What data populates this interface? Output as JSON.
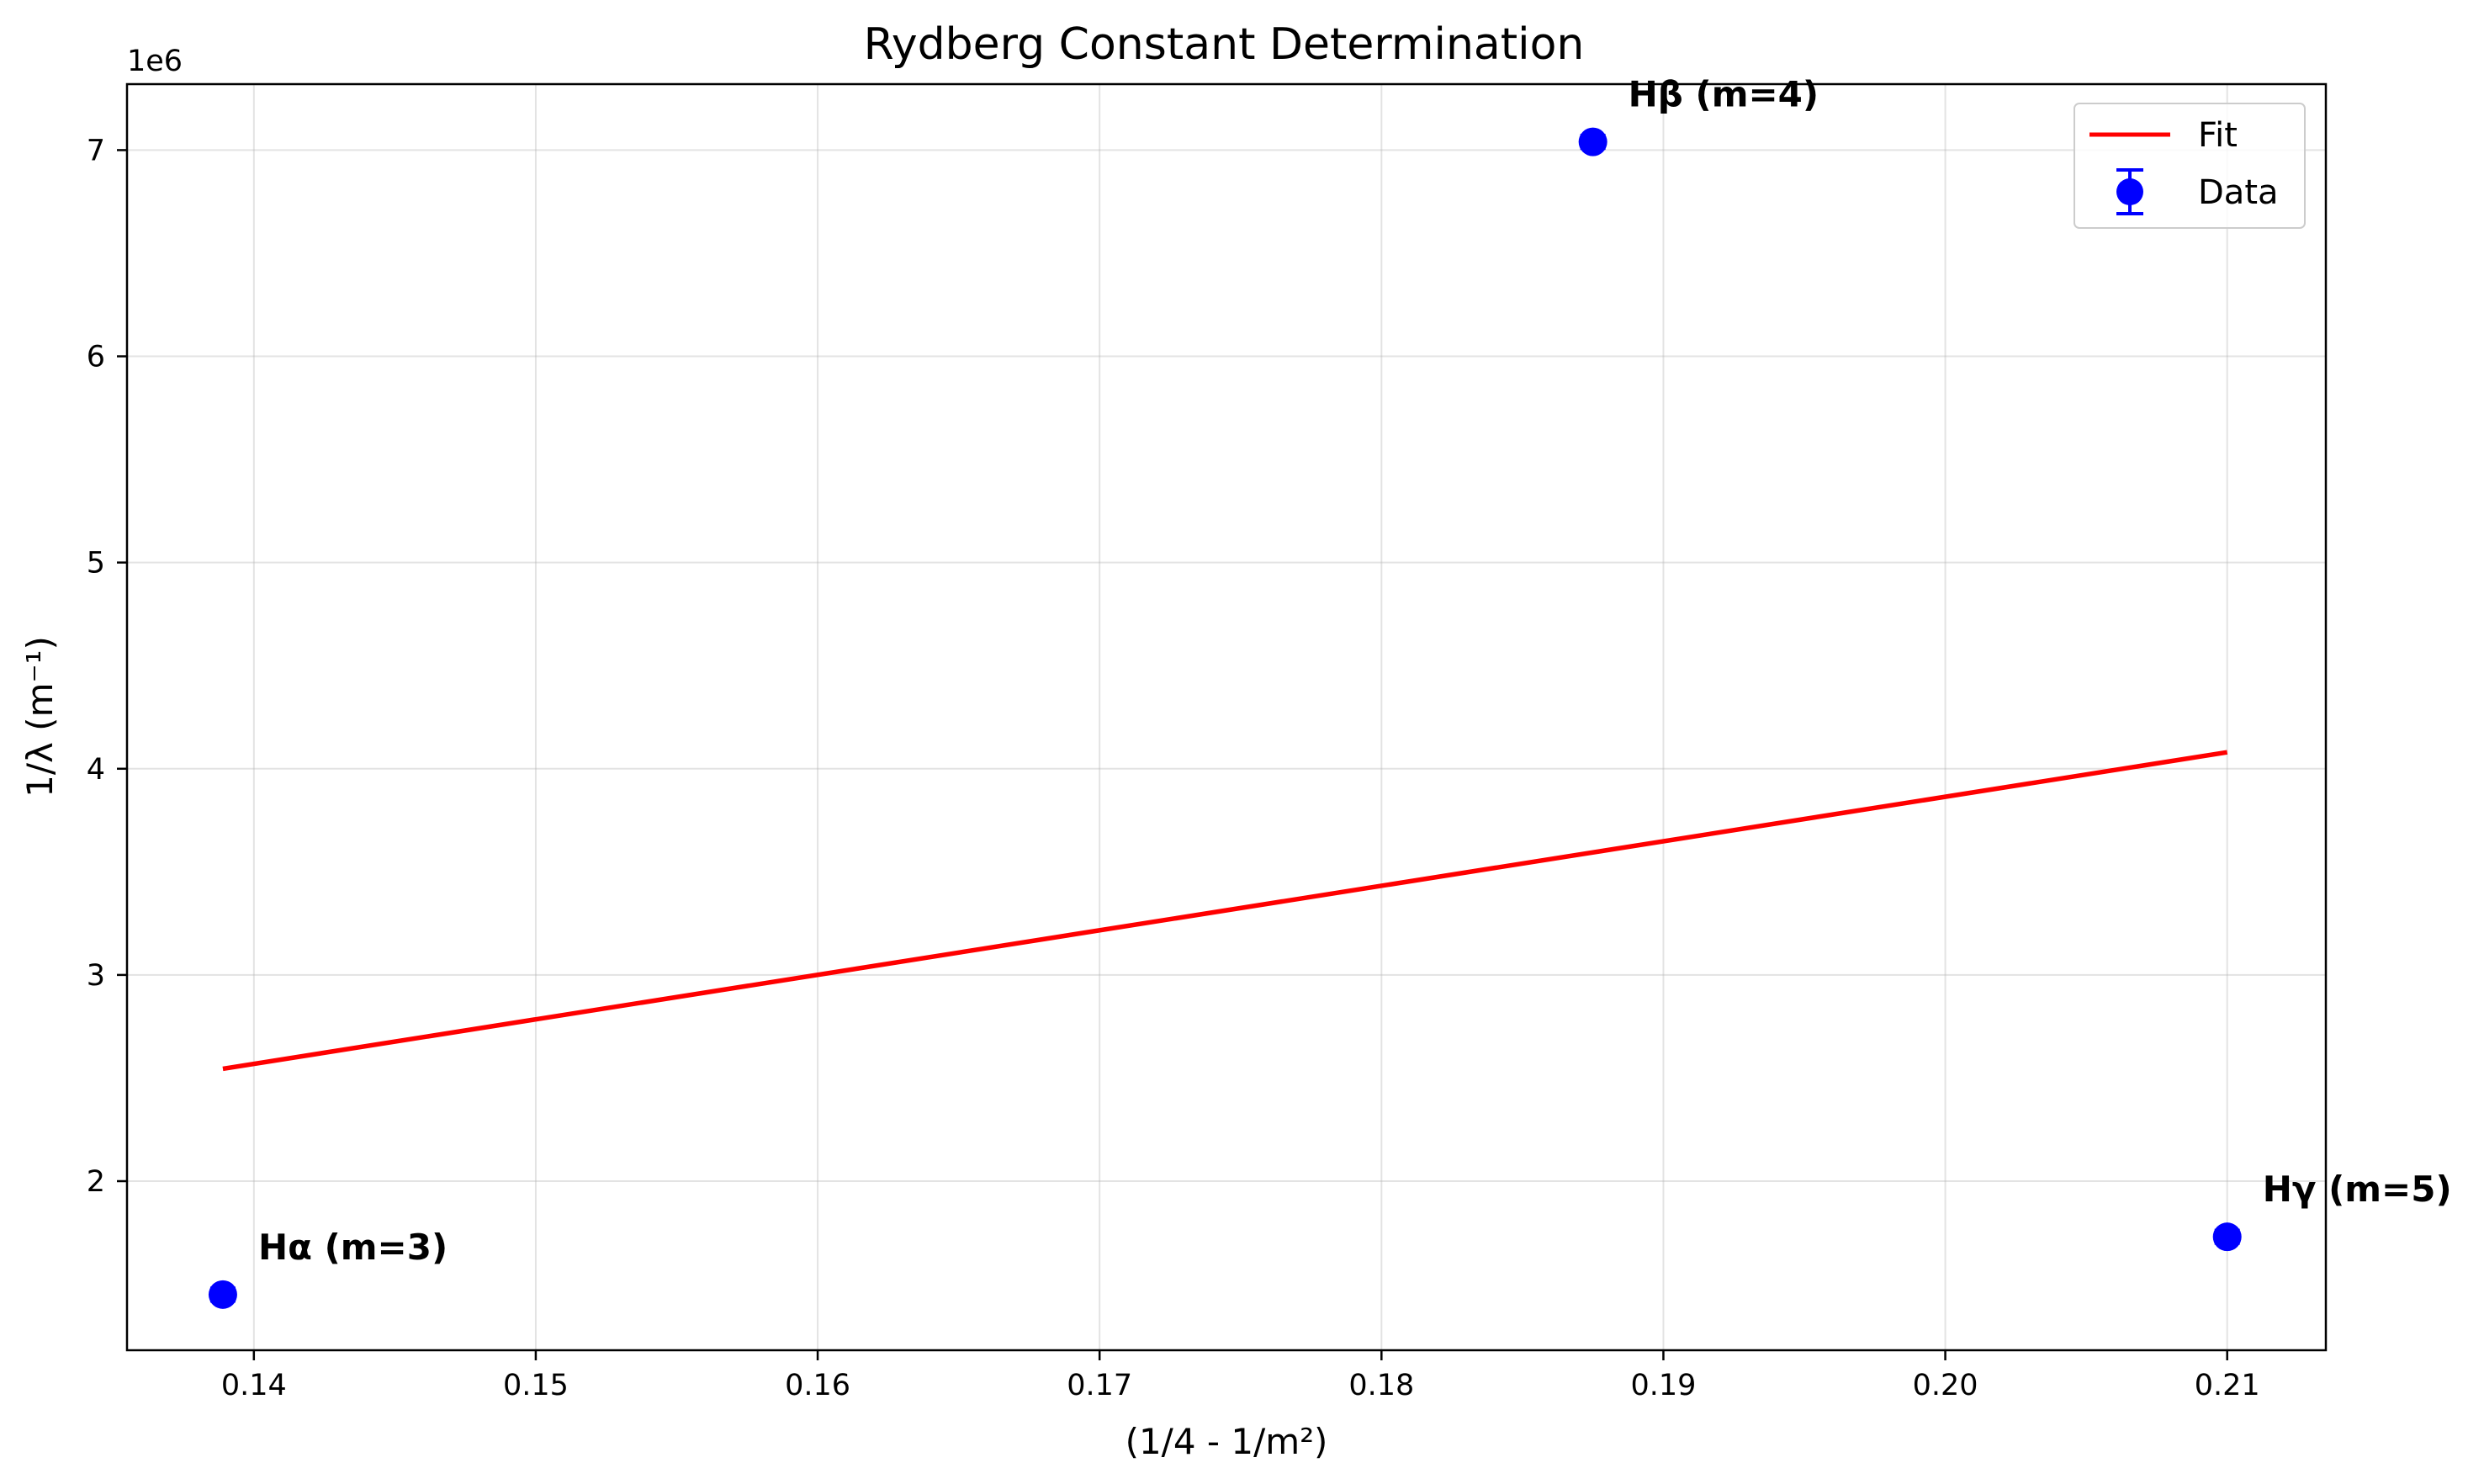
{
  "chart_data": {
    "type": "scatter",
    "title": "Rydberg Constant Determination",
    "xlabel": "(1/4 - 1/m²)",
    "ylabel": "1/λ (m⁻¹)",
    "y_offset_label": "1e6",
    "y_scale_factor": 1000000,
    "xlim": [
      0.1355,
      0.2135
    ],
    "ylim": [
      1180000,
      7320000
    ],
    "grid": true,
    "legend_position": "top-right",
    "x_ticks": [
      {
        "value": 0.14,
        "label": "0.14"
      },
      {
        "value": 0.15,
        "label": "0.15"
      },
      {
        "value": 0.16,
        "label": "0.16"
      },
      {
        "value": 0.17,
        "label": "0.17"
      },
      {
        "value": 0.18,
        "label": "0.18"
      },
      {
        "value": 0.19,
        "label": "0.19"
      },
      {
        "value": 0.2,
        "label": "0.20"
      },
      {
        "value": 0.21,
        "label": "0.21"
      }
    ],
    "y_ticks": [
      {
        "value": 2000000,
        "label": "2"
      },
      {
        "value": 3000000,
        "label": "3"
      },
      {
        "value": 4000000,
        "label": "4"
      },
      {
        "value": 5000000,
        "label": "5"
      },
      {
        "value": 6000000,
        "label": "6"
      },
      {
        "value": 7000000,
        "label": "7"
      }
    ],
    "series": [
      {
        "name": "Data",
        "kind": "errorbar",
        "color": "#0000ff",
        "points": [
          {
            "x": 0.1389,
            "y": 1450000,
            "label": "Hα (m=3)"
          },
          {
            "x": 0.1875,
            "y": 7040000,
            "label": "Hβ (m=4)"
          },
          {
            "x": 0.21,
            "y": 1730000,
            "label": "Hγ (m=5)"
          }
        ]
      },
      {
        "name": "Fit",
        "kind": "line",
        "color": "#ff0000",
        "x": [
          0.1389,
          0.21
        ],
        "y": [
          2545000,
          4080000
        ]
      }
    ]
  }
}
